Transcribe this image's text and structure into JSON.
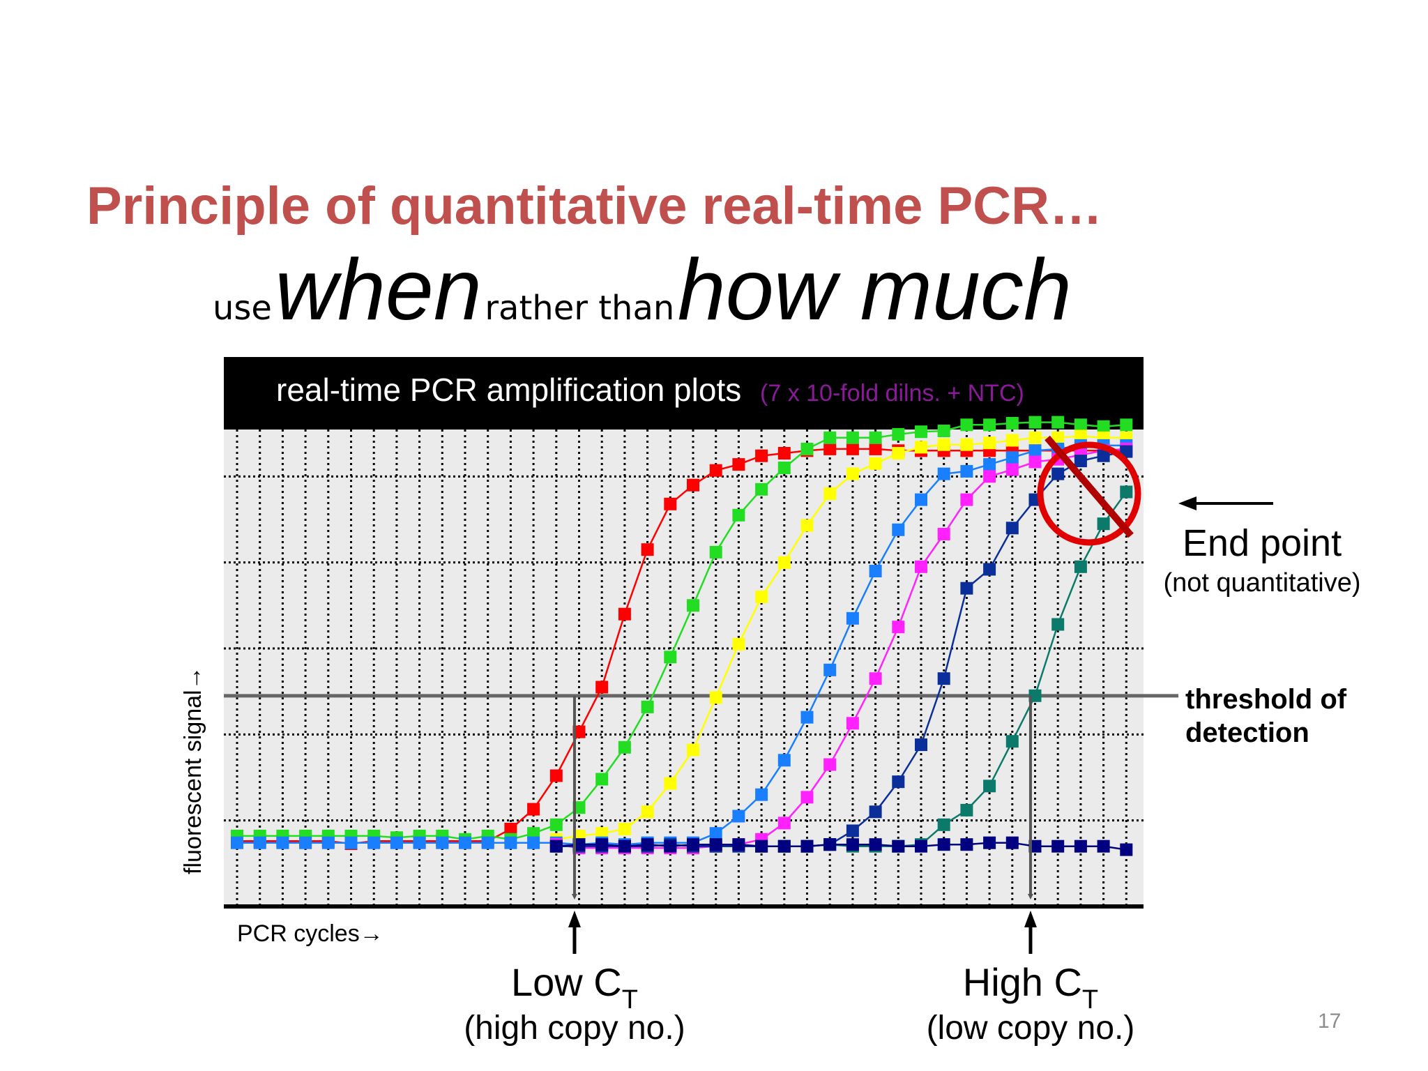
{
  "slide": {
    "title": "Principle of quantitative real-time PCR…",
    "subtitle": {
      "use": "use",
      "when": "when",
      "rather_than": "rather than",
      "how_much": "how much"
    },
    "page_number": "17"
  },
  "chart_data": {
    "type": "line",
    "title": "real-time PCR amplification plots",
    "title_note": "(7 x 10-fold dilns. + NTC)",
    "xlabel": "PCR cycles→",
    "ylabel": "fluorescent signal→",
    "xlim": [
      0,
      40
    ],
    "ylim": [
      0,
      6
    ],
    "grid": true,
    "threshold": {
      "value": 2.45,
      "label": "threshold of detection"
    },
    "end_point": {
      "label": "End point",
      "note": "(not quantitative)"
    },
    "annotations": {
      "low_ct": {
        "x": 14.8,
        "label": "Low C",
        "sub": "T",
        "note": "(high copy no.)"
      },
      "high_ct": {
        "x": 34.8,
        "label": "High C",
        "sub": "T",
        "note": "(low copy no.)"
      }
    },
    "colors": {
      "red": "#ff0000",
      "green": "#22dd22",
      "yellow": "#ffff00",
      "blue": "#1a7fff",
      "magenta": "#ff22ff",
      "navy": "#0a2f9a",
      "teal": "#0b7a6a",
      "ntc": "#000080",
      "threshold": "#666666",
      "title_note": "#8a1a9a",
      "forbidden": "#e00000"
    },
    "series": [
      {
        "color": "red",
        "x": [
          0,
          1,
          2,
          3,
          4,
          5,
          6,
          7,
          8,
          9,
          10,
          11,
          12,
          13,
          14,
          15,
          16,
          17,
          18,
          19,
          20,
          21,
          22,
          23,
          24,
          25,
          26,
          27,
          28,
          29,
          30,
          31,
          32,
          33,
          34,
          35,
          36,
          37,
          38,
          39
        ],
        "values": [
          0.76,
          0.76,
          0.76,
          0.76,
          0.76,
          0.73,
          0.76,
          0.76,
          0.76,
          0.76,
          0.76,
          0.76,
          0.9,
          1.13,
          1.52,
          2.03,
          2.55,
          3.4,
          4.15,
          4.68,
          4.9,
          5.07,
          5.14,
          5.24,
          5.27,
          5.3,
          5.32,
          5.32,
          5.32,
          5.3,
          5.3,
          5.3,
          5.3,
          5.3,
          5.3,
          5.3,
          5.3,
          5.3,
          5.3,
          5.3
        ]
      },
      {
        "color": "green",
        "x": [
          0,
          1,
          2,
          3,
          4,
          5,
          6,
          7,
          8,
          9,
          10,
          11,
          12,
          13,
          14,
          15,
          16,
          17,
          18,
          19,
          20,
          21,
          22,
          23,
          24,
          25,
          26,
          27,
          28,
          29,
          30,
          31,
          32,
          33,
          34,
          35,
          36,
          37,
          38,
          39
        ],
        "values": [
          0.82,
          0.82,
          0.82,
          0.82,
          0.82,
          0.82,
          0.82,
          0.8,
          0.82,
          0.82,
          0.78,
          0.82,
          0.78,
          0.85,
          0.95,
          1.15,
          1.48,
          1.85,
          2.32,
          2.9,
          3.5,
          4.12,
          4.55,
          4.85,
          5.1,
          5.32,
          5.45,
          5.45,
          5.45,
          5.49,
          5.52,
          5.53,
          5.6,
          5.6,
          5.62,
          5.63,
          5.63,
          5.6,
          5.58,
          5.6
        ]
      },
      {
        "color": "yellow",
        "x": [
          14,
          15,
          16,
          17,
          18,
          19,
          20,
          21,
          22,
          23,
          24,
          25,
          26,
          27,
          28,
          29,
          30,
          31,
          32,
          33,
          34,
          35,
          36,
          37,
          38,
          39
        ],
        "values": [
          0.78,
          0.82,
          0.85,
          0.9,
          1.1,
          1.43,
          1.82,
          2.43,
          3.05,
          3.6,
          4.0,
          4.43,
          4.8,
          5.03,
          5.15,
          5.27,
          5.34,
          5.37,
          5.37,
          5.39,
          5.42,
          5.45,
          5.45,
          5.47,
          5.45,
          5.45
        ]
      },
      {
        "color": "blue",
        "x": [
          0,
          1,
          2,
          3,
          4,
          5,
          6,
          7,
          8,
          9,
          10,
          11,
          12,
          13,
          14,
          15,
          16,
          17,
          18,
          19,
          20,
          21,
          22,
          23,
          24,
          25,
          26,
          27,
          28,
          29,
          30,
          31,
          32,
          33,
          34,
          35,
          36,
          37,
          38,
          39
        ],
        "values": [
          0.74,
          0.74,
          0.74,
          0.74,
          0.74,
          0.74,
          0.74,
          0.74,
          0.74,
          0.74,
          0.74,
          0.74,
          0.74,
          0.74,
          0.74,
          0.72,
          0.74,
          0.72,
          0.74,
          0.74,
          0.74,
          0.85,
          1.05,
          1.3,
          1.7,
          2.2,
          2.75,
          3.35,
          3.9,
          4.38,
          4.73,
          5.03,
          5.06,
          5.14,
          5.22,
          5.3,
          5.32,
          5.36,
          5.36,
          5.36
        ]
      },
      {
        "color": "magenta",
        "x": [
          14,
          15,
          16,
          17,
          18,
          19,
          20,
          21,
          22,
          23,
          24,
          25,
          26,
          27,
          28,
          29,
          30,
          31,
          32,
          33,
          34,
          35,
          36,
          37,
          38,
          39
        ],
        "values": [
          0.72,
          0.68,
          0.68,
          0.68,
          0.68,
          0.68,
          0.68,
          0.7,
          0.72,
          0.78,
          0.97,
          1.27,
          1.65,
          2.13,
          2.65,
          3.25,
          3.95,
          4.33,
          4.73,
          5.0,
          5.08,
          5.17,
          5.2,
          5.25,
          5.3,
          5.32
        ]
      },
      {
        "color": "navy",
        "x": [
          14,
          15,
          16,
          17,
          18,
          19,
          20,
          21,
          22,
          23,
          24,
          25,
          26,
          27,
          28,
          29,
          30,
          31,
          32,
          33,
          34,
          35,
          36,
          37,
          38,
          39
        ],
        "values": [
          0.7,
          0.7,
          0.7,
          0.7,
          0.7,
          0.72,
          0.7,
          0.7,
          0.7,
          0.7,
          0.7,
          0.7,
          0.72,
          0.88,
          1.1,
          1.45,
          1.88,
          2.65,
          3.7,
          3.92,
          4.4,
          4.73,
          5.03,
          5.18,
          5.24,
          5.29
        ]
      },
      {
        "color": "teal",
        "x": [
          24,
          25,
          26,
          27,
          28,
          29,
          30,
          31,
          32,
          33,
          34,
          35,
          36,
          37,
          38,
          39
        ],
        "values": [
          0.7,
          0.7,
          0.72,
          0.7,
          0.7,
          0.7,
          0.72,
          0.95,
          1.12,
          1.4,
          1.92,
          2.45,
          3.28,
          3.95,
          4.45,
          4.82
        ]
      },
      {
        "color": "ntc",
        "x": [
          14,
          15,
          16,
          17,
          18,
          19,
          20,
          21,
          22,
          23,
          24,
          25,
          26,
          27,
          28,
          29,
          30,
          31,
          32,
          33,
          34,
          35,
          36,
          37,
          38,
          39
        ],
        "values": [
          0.7,
          0.72,
          0.72,
          0.7,
          0.72,
          0.7,
          0.72,
          0.72,
          0.72,
          0.7,
          0.7,
          0.7,
          0.72,
          0.72,
          0.72,
          0.7,
          0.7,
          0.72,
          0.72,
          0.74,
          0.74,
          0.7,
          0.7,
          0.7,
          0.7,
          0.66
        ]
      }
    ]
  }
}
